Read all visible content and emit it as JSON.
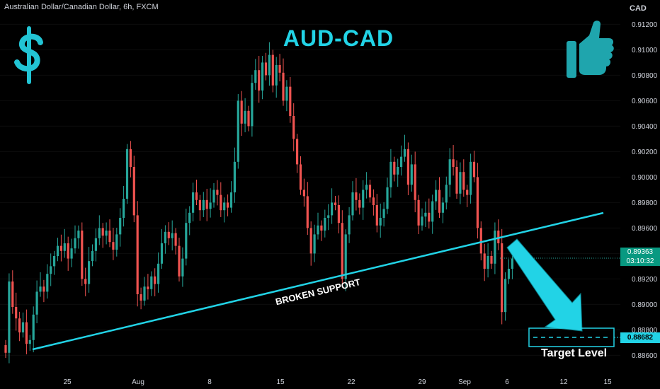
{
  "header": {
    "symbol_line": "Australian Dollar/Canadian Dollar, 6h, FXCM",
    "currency": "CAD"
  },
  "annotations": {
    "title": "AUD-CAD",
    "support_label": "BROKEN SUPPORT",
    "target_label": "Target Level",
    "dollar_icon": "dollar-sign-icon",
    "thumb_icon": "thumbs-up-icon"
  },
  "price_tag": {
    "price": "0.89363",
    "countdown": "03:10:32"
  },
  "target_tag": {
    "price": "0.88682"
  },
  "colors": {
    "bull": "#26a69a",
    "bear": "#ef5350",
    "accent": "#22d3e6",
    "background": "#000000"
  },
  "chart_data": {
    "type": "candlestick",
    "symbol": "Australian Dollar/Canadian Dollar",
    "timeframe": "6h",
    "source": "FXCM",
    "ylim": [
      0.8848,
      0.9128
    ],
    "y_ticks": [
      "0.91200",
      "0.91000",
      "0.90800",
      "0.90600",
      "0.90400",
      "0.90200",
      "0.90000",
      "0.89800",
      "0.89600",
      "0.89400",
      "0.89200",
      "0.89000",
      "0.88800",
      "0.88600"
    ],
    "x_ticks": [
      "25",
      "Aug",
      "8",
      "15",
      "22",
      "29",
      "Sep",
      "6",
      "12",
      "15"
    ],
    "last_price": 0.89363,
    "target_level": 0.88682,
    "closes": [
      0.8862,
      0.8918,
      0.8898,
      0.8889,
      0.8878,
      0.8886,
      0.8869,
      0.8872,
      0.8892,
      0.891,
      0.8914,
      0.891,
      0.8924,
      0.893,
      0.8938,
      0.8946,
      0.8942,
      0.8948,
      0.8936,
      0.8944,
      0.8952,
      0.8958,
      0.892,
      0.8916,
      0.8934,
      0.8942,
      0.8952,
      0.896,
      0.8954,
      0.8958,
      0.8949,
      0.8943,
      0.8955,
      0.8968,
      0.8983,
      0.9022,
      0.9008,
      0.897,
      0.8908,
      0.8903,
      0.8914,
      0.8912,
      0.8922,
      0.8916,
      0.8932,
      0.8948,
      0.8957,
      0.8952,
      0.8956,
      0.8946,
      0.8922,
      0.8936,
      0.8964,
      0.8972,
      0.8988,
      0.8982,
      0.8974,
      0.8982,
      0.8975,
      0.898,
      0.899,
      0.8986,
      0.8974,
      0.898,
      0.8976,
      0.8988,
      0.9012,
      0.906,
      0.9042,
      0.9052,
      0.904,
      0.9074,
      0.9084,
      0.9068,
      0.909,
      0.908,
      0.9096,
      0.9072,
      0.9088,
      0.9082,
      0.906,
      0.9071,
      0.9048,
      0.903,
      0.901,
      0.899,
      0.8985,
      0.896,
      0.894,
      0.8955,
      0.8962,
      0.8958,
      0.8968,
      0.897,
      0.898,
      0.8978,
      0.8964,
      0.892,
      0.8955,
      0.897,
      0.8988,
      0.8982,
      0.8976,
      0.899,
      0.8994,
      0.8984,
      0.8978,
      0.8962,
      0.8968,
      0.8975,
      0.8992,
      0.9012,
      0.9002,
      0.9008,
      0.9016,
      0.9022,
      0.8994,
      0.901,
      0.8982,
      0.8962,
      0.8969,
      0.8972,
      0.8965,
      0.8981,
      0.899,
      0.8972,
      0.898,
      0.8994,
      0.9014,
      0.9008,
      0.8987,
      0.9004,
      0.899,
      0.8986,
      0.9012,
      0.9,
      0.896,
      0.894,
      0.8928,
      0.8938,
      0.8932,
      0.8958,
      0.8948,
      0.8894,
      0.892,
      0.8928,
      0.8936
    ]
  }
}
